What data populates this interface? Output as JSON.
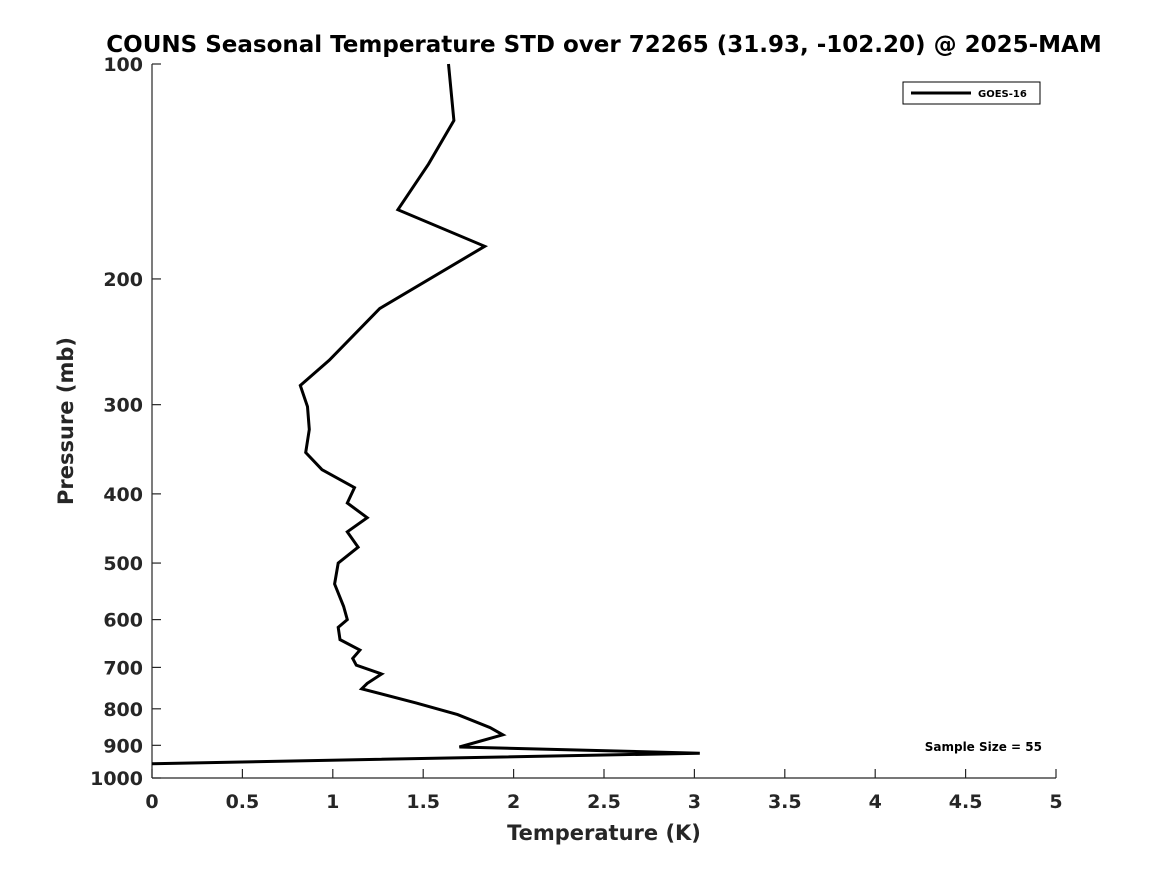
{
  "chart_data": {
    "type": "line",
    "title": "COUNS Seasonal Temperature STD over 72265 (31.93, -102.20) @ 2025-MAM",
    "xlabel": "Temperature (K)",
    "ylabel": "Pressure (mb)",
    "xlim": [
      0,
      5
    ],
    "ylim": [
      100,
      1000
    ],
    "y_scale": "log",
    "y_reversed": true,
    "x_ticks": [
      "0",
      "0.5",
      "1",
      "1.5",
      "2",
      "2.5",
      "3",
      "3.5",
      "4",
      "4.5",
      "5"
    ],
    "y_ticks": [
      "100",
      "200",
      "300",
      "400",
      "500",
      "600",
      "700",
      "800",
      "900",
      "1000"
    ],
    "grid": false,
    "legend_position": "top-right",
    "series": [
      {
        "name": "GOES-16",
        "color": "#000000",
        "x": [
          1.64,
          1.67,
          1.53,
          1.36,
          1.84,
          1.26,
          0.98,
          0.82,
          0.86,
          0.87,
          0.85,
          0.94,
          1.12,
          1.08,
          1.19,
          1.08,
          1.14,
          1.03,
          1.01,
          1.06,
          1.08,
          1.03,
          1.04,
          1.15,
          1.11,
          1.13,
          1.27,
          1.19,
          1.16,
          1.46,
          1.69,
          1.87,
          1.94,
          1.7,
          3.03,
          0.0
        ],
        "y": [
          100,
          120,
          138,
          160,
          180,
          220,
          260,
          282,
          302,
          325,
          350,
          370,
          392,
          412,
          432,
          452,
          475,
          500,
          535,
          575,
          600,
          615,
          640,
          662,
          680,
          695,
          715,
          737,
          750,
          785,
          815,
          850,
          870,
          905,
          923,
          955
        ]
      }
    ],
    "annotation": "Sample Size = 55"
  }
}
